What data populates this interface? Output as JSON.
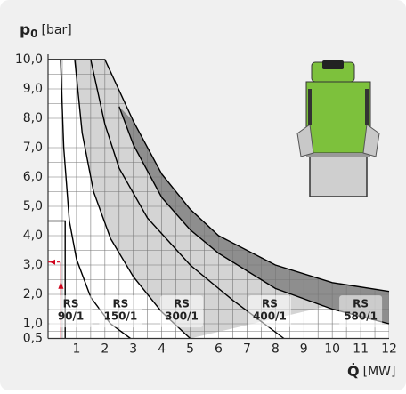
{
  "chart_data": {
    "type": "line",
    "ylabel": {
      "symbol": "p",
      "sub": "0",
      "unit": "[bar]"
    },
    "xlabel": {
      "symbol": "Q̇",
      "unit": "[MW]"
    },
    "xlim": [
      0,
      12
    ],
    "ylim": [
      0.5,
      10
    ],
    "xticks": [
      1,
      2,
      3,
      4,
      5,
      6,
      7,
      8,
      9,
      10,
      11,
      12
    ],
    "yticks": [
      {
        "value": 0.5,
        "label": "0,5"
      },
      {
        "value": 1,
        "label": "1,0"
      },
      {
        "value": 2,
        "label": "2,0"
      },
      {
        "value": 3,
        "label": "3,0"
      },
      {
        "value": 4,
        "label": "4,0"
      },
      {
        "value": 5,
        "label": "5,0"
      },
      {
        "value": 6,
        "label": "6,0"
      },
      {
        "value": 7,
        "label": "7,0"
      },
      {
        "value": 8,
        "label": "8,0"
      },
      {
        "value": 9,
        "label": "9,0"
      },
      {
        "value": 10,
        "label": "10,0"
      }
    ],
    "grid": true,
    "series": [
      {
        "label_lines": [
          "RS",
          "90/1"
        ],
        "color": "#000000",
        "x": [
          0.44,
          0.55,
          0.75,
          1.0,
          1.5,
          2.2,
          2.9
        ],
        "y": [
          10,
          7,
          4.5,
          3.2,
          1.9,
          1.0,
          0.5
        ]
      },
      {
        "label_lines": [
          "RS",
          "150/1"
        ],
        "color": "#000000",
        "x": [
          0.94,
          1.2,
          1.6,
          2.2,
          3,
          4,
          5.0
        ],
        "y": [
          10,
          7.5,
          5.5,
          3.9,
          2.6,
          1.4,
          0.5
        ]
      },
      {
        "label_lines": [
          "RS",
          "300/1"
        ],
        "color": "#000000",
        "x": [
          1.5,
          2,
          2.5,
          3.5,
          5,
          6.5,
          8.3
        ],
        "y": [
          10,
          7.8,
          6.3,
          4.6,
          3.0,
          1.8,
          0.5
        ]
      },
      {
        "label_lines": [
          "RS",
          "400/1"
        ],
        "color": "#000000",
        "x": [
          2.5,
          3,
          4,
          5,
          6,
          8,
          10,
          12
        ],
        "y": [
          8.4,
          7.1,
          5.3,
          4.2,
          3.4,
          2.2,
          1.5,
          1.0
        ]
      },
      {
        "label_lines": [
          "RS",
          "580/1"
        ],
        "color": "#000000",
        "x": [
          0,
          2.0,
          3,
          4,
          5,
          6,
          8,
          10,
          12
        ],
        "y": [
          10,
          10,
          7.9,
          6.1,
          4.9,
          4.0,
          3.0,
          2.4,
          2.1
        ]
      }
    ],
    "minimum_limit": {
      "x": [
        0,
        0.6,
        0.6
      ],
      "y": [
        4.5,
        4.5,
        0.5
      ]
    },
    "operating_point": {
      "x": 0.45,
      "y": 3.1,
      "color": "#d0021b"
    }
  }
}
